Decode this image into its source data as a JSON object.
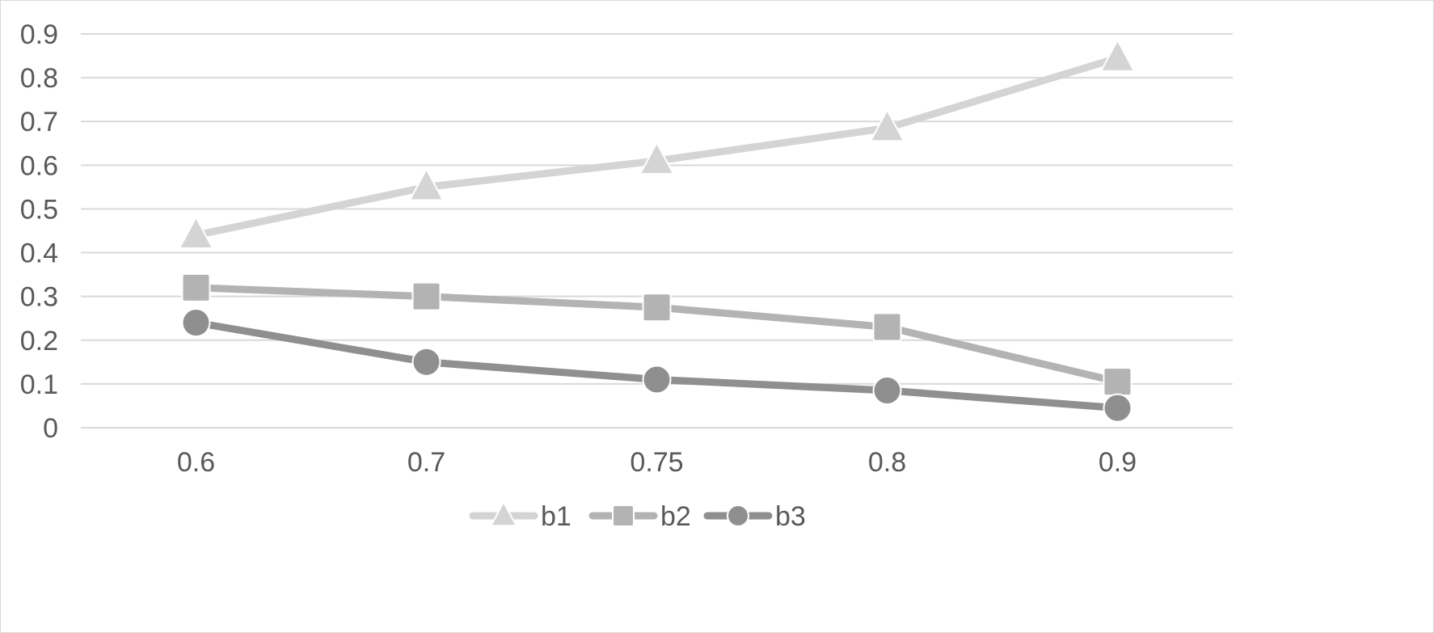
{
  "chart_data": {
    "type": "line",
    "title": "",
    "xlabel": "",
    "ylabel": "",
    "categories": [
      "0.6",
      "0.7",
      "0.75",
      "0.8",
      "0.9"
    ],
    "ylim": [
      0,
      0.9
    ],
    "yticks": [
      "0",
      "0.1",
      "0.2",
      "0.3",
      "0.4",
      "0.5",
      "0.6",
      "0.7",
      "0.8",
      "0.9"
    ],
    "grid": true,
    "legend_position": "bottom",
    "series": [
      {
        "name": "b1",
        "values": [
          0.44,
          0.55,
          0.61,
          0.685,
          0.845
        ],
        "marker": "triangle",
        "color": "#d4d4d4"
      },
      {
        "name": "b2",
        "values": [
          0.32,
          0.3,
          0.275,
          0.23,
          0.105
        ],
        "marker": "square",
        "color": "#b3b3b3"
      },
      {
        "name": "b3",
        "values": [
          0.24,
          0.15,
          0.11,
          0.085,
          0.045
        ],
        "marker": "circle",
        "color": "#8f8f8f"
      }
    ]
  }
}
